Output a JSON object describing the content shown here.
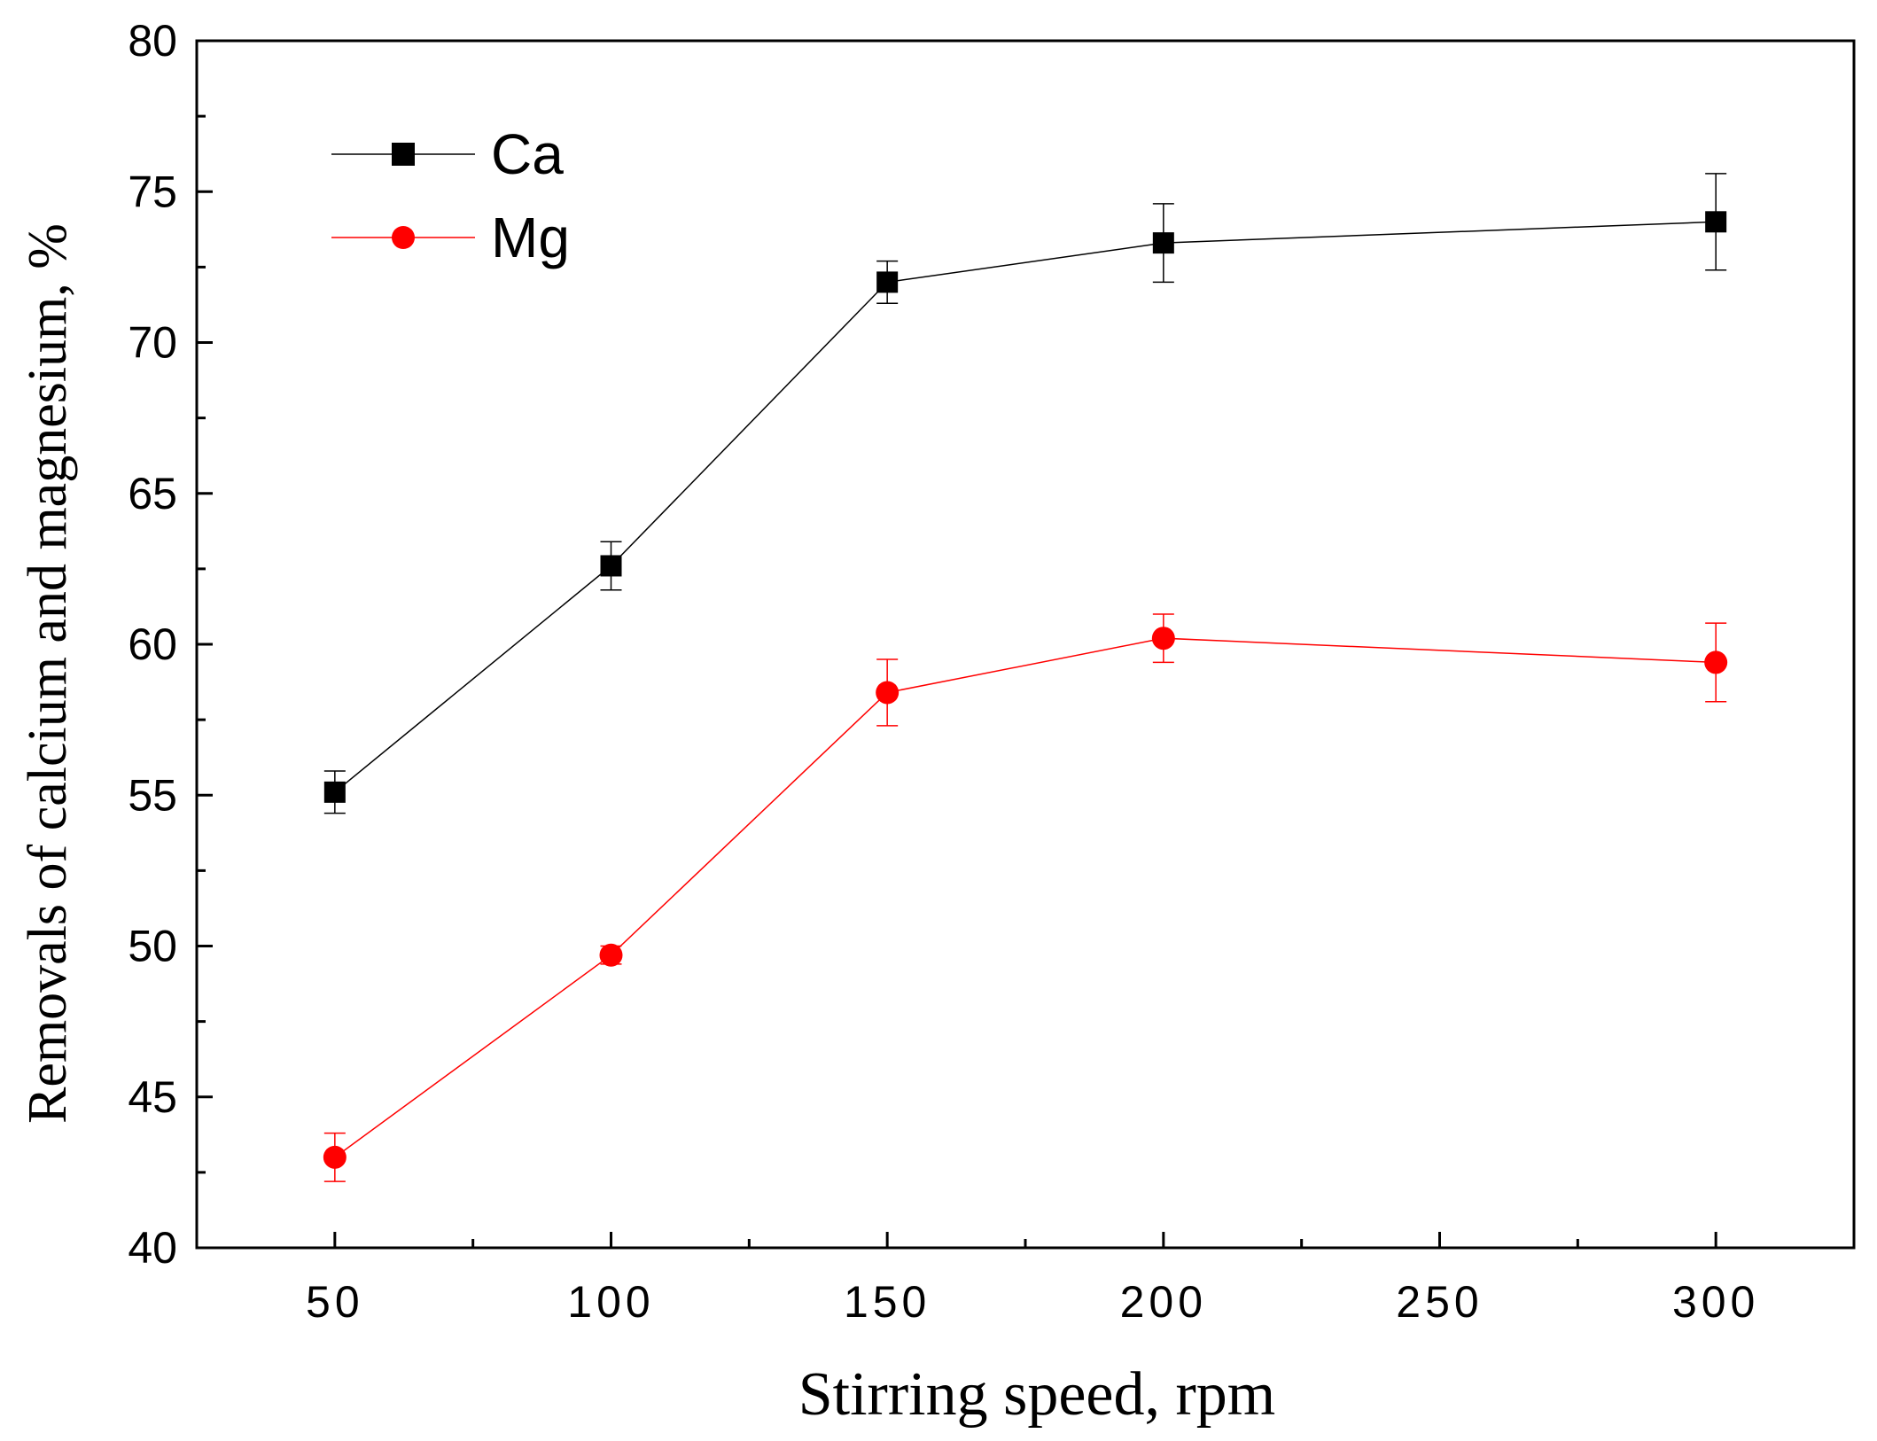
{
  "chart_data": {
    "type": "line",
    "title": "",
    "xlabel": "Stirring speed, rpm",
    "ylabel": "Removals of calcium and magnesium, %",
    "xlim": [
      25,
      325
    ],
    "ylim": [
      40,
      80
    ],
    "x_ticks": [
      50,
      100,
      150,
      200,
      250,
      300
    ],
    "y_ticks": [
      40,
      45,
      50,
      55,
      60,
      65,
      70,
      75,
      80
    ],
    "x_tick_labels": [
      "50",
      "100",
      "150",
      "200",
      "250",
      "300"
    ],
    "y_tick_labels": [
      "40",
      "45",
      "50",
      "55",
      "60",
      "65",
      "70",
      "75",
      "80"
    ],
    "grid": false,
    "legend_position": "top-left",
    "series": [
      {
        "name": "Ca",
        "color": "#000000",
        "marker": "square",
        "x": [
          50,
          100,
          150,
          200,
          300
        ],
        "values": [
          55.1,
          62.6,
          72.0,
          73.3,
          74.0
        ],
        "errors": [
          0.7,
          0.8,
          0.7,
          1.3,
          1.6
        ]
      },
      {
        "name": "Mg",
        "color": "#ff0000",
        "marker": "circle",
        "x": [
          50,
          100,
          150,
          200,
          300
        ],
        "values": [
          43.0,
          49.7,
          58.4,
          60.2,
          59.4
        ],
        "errors": [
          0.8,
          0.3,
          1.1,
          0.8,
          1.3
        ]
      }
    ]
  }
}
